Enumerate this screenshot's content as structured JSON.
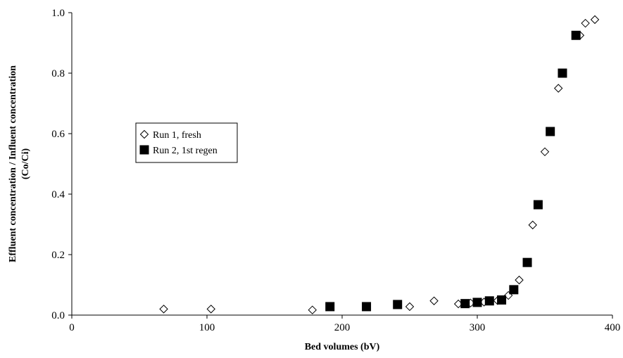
{
  "chart_data": {
    "type": "scatter",
    "xlabel": "Bed volumes (bV)",
    "ylabel": [
      "Effluent concentration / Influent concentration",
      "(Co/Ci)"
    ],
    "xlim": [
      0,
      400
    ],
    "xticks": [
      0,
      100,
      200,
      300,
      400
    ],
    "ylim": [
      0,
      1
    ],
    "yticks": [
      {
        "value": 0,
        "label": "0.0"
      },
      {
        "value": 0.2,
        "label": "0.2"
      },
      {
        "value": 0.4,
        "label": "0.4"
      },
      {
        "value": 0.6,
        "label": "0.6"
      },
      {
        "value": 0.8,
        "label": "0.8"
      },
      {
        "value": 1,
        "label": "1.0"
      }
    ],
    "legend": "middle left",
    "series": [
      {
        "name": "Run 1, fresh",
        "marker": "diamond",
        "color": "#000000",
        "x": [
          68,
          103,
          178,
          250,
          268,
          286,
          295,
          305,
          315,
          323,
          331,
          341,
          350,
          360,
          376,
          380,
          387
        ],
        "values": [
          0.02,
          0.02,
          0.017,
          0.028,
          0.047,
          0.037,
          0.04,
          0.043,
          0.048,
          0.065,
          0.116,
          0.298,
          0.54,
          0.75,
          0.925,
          0.965,
          0.977
        ]
      },
      {
        "name": "Run 2, 1st regen",
        "marker": "square",
        "color": "#000000",
        "x": [
          191,
          218,
          241,
          291,
          300,
          309,
          318,
          327,
          337,
          345,
          354,
          363,
          373
        ],
        "values": [
          0.028,
          0.028,
          0.035,
          0.038,
          0.042,
          0.047,
          0.05,
          0.084,
          0.174,
          0.365,
          0.607,
          0.8,
          0.925
        ]
      }
    ]
  }
}
